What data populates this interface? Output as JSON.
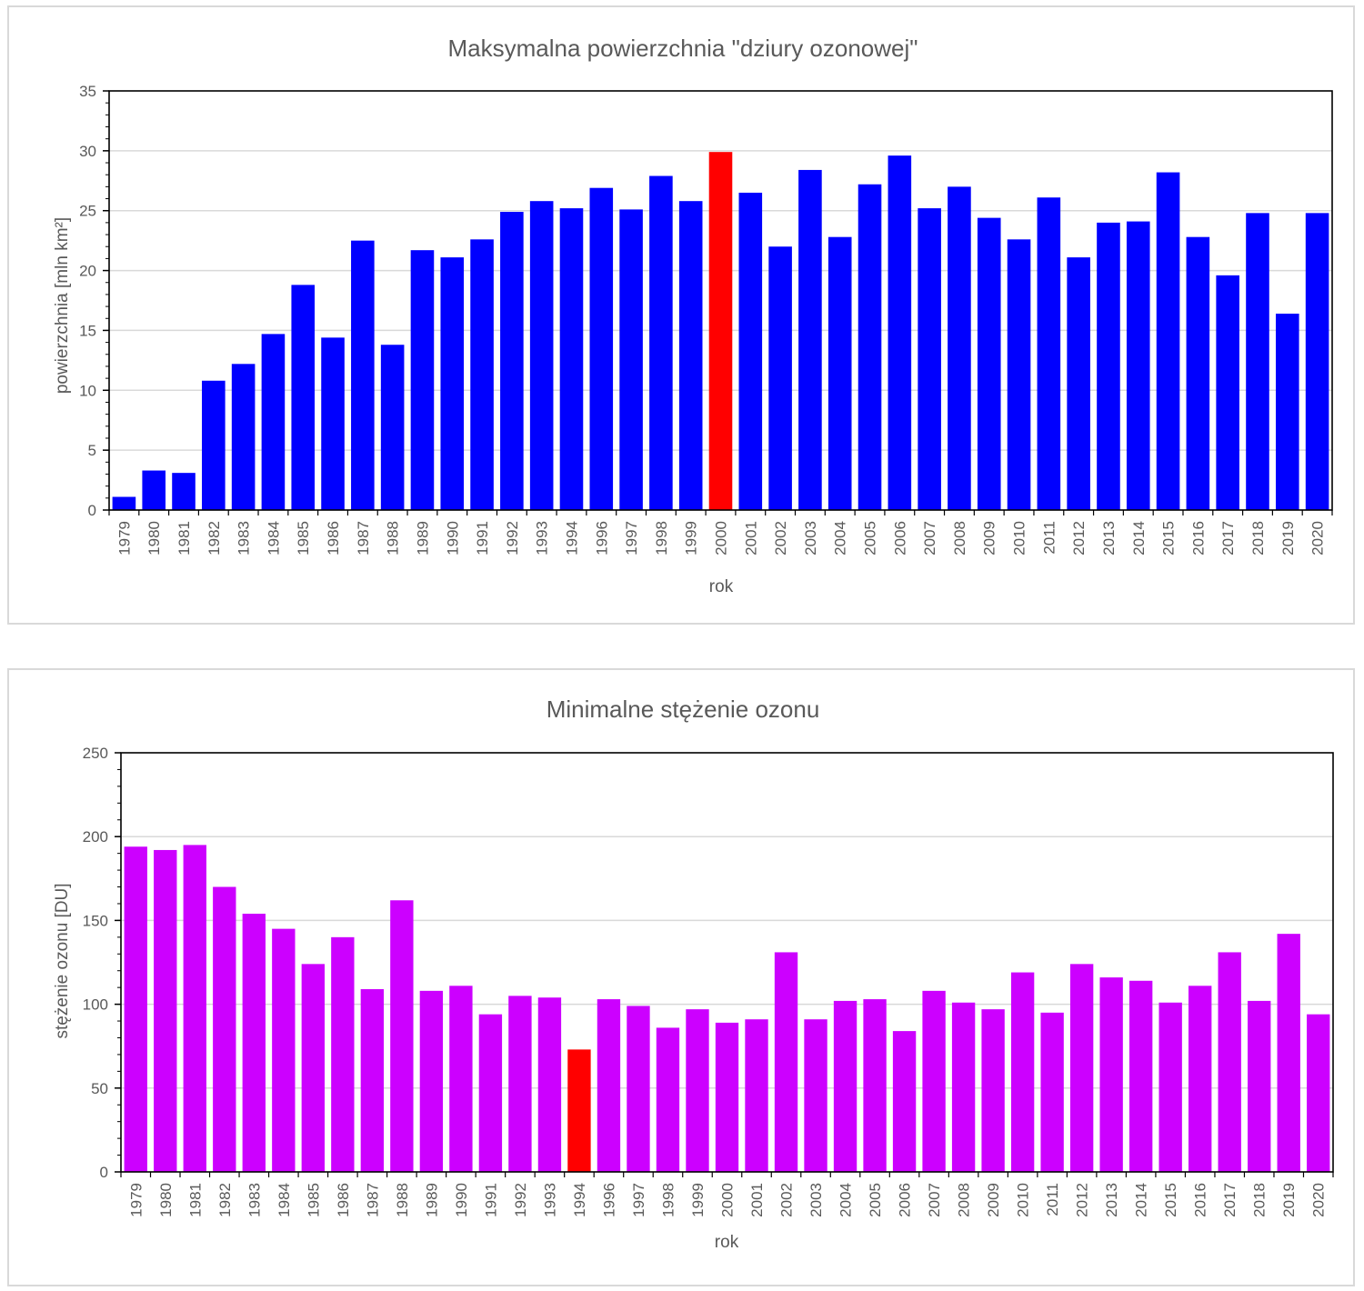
{
  "charts": [
    {
      "title": "Maksymalna powierzchnia \"dziury ozonowej\"",
      "xlabel": "rok",
      "ylabel": "powierzchnia [mln km²]",
      "bar_color": "#0000FF",
      "highlight_color": "#FF0000",
      "highlight_category": "2000",
      "yticks": [
        "0",
        "5",
        "10",
        "15",
        "20",
        "25",
        "30",
        "35"
      ]
    },
    {
      "title": "Minimalne stężenie ozonu",
      "xlabel": "rok",
      "ylabel": "stężenie ozonu [DU]",
      "bar_color": "#CC00FF",
      "highlight_color": "#FF0000",
      "highlight_category": "1994",
      "yticks": [
        "0",
        "50",
        "100",
        "150",
        "200",
        "250"
      ]
    }
  ],
  "chart_data": [
    {
      "type": "bar",
      "title": "Maksymalna powierzchnia \"dziury ozonowej\"",
      "xlabel": "rok",
      "ylabel": "powierzchnia [mln km²]",
      "ylim": [
        0,
        35
      ],
      "grid": true,
      "categories": [
        "1979",
        "1980",
        "1981",
        "1982",
        "1983",
        "1984",
        "1985",
        "1986",
        "1987",
        "1988",
        "1989",
        "1990",
        "1991",
        "1992",
        "1993",
        "1994",
        "1996",
        "1997",
        "1998",
        "1999",
        "2000",
        "2001",
        "2002",
        "2003",
        "2004",
        "2005",
        "2006",
        "2007",
        "2008",
        "2009",
        "2010",
        "2011",
        "2012",
        "2013",
        "2014",
        "2015",
        "2016",
        "2017",
        "2018",
        "2019",
        "2020"
      ],
      "values": [
        1.1,
        3.3,
        3.1,
        10.8,
        12.2,
        14.7,
        18.8,
        14.4,
        22.5,
        13.8,
        21.7,
        21.1,
        22.6,
        24.9,
        25.8,
        25.2,
        26.9,
        25.1,
        27.9,
        25.8,
        29.9,
        26.5,
        22.0,
        28.4,
        22.8,
        27.2,
        29.6,
        25.2,
        27.0,
        24.4,
        22.6,
        26.1,
        21.1,
        24.0,
        24.1,
        28.2,
        22.8,
        19.6,
        24.8,
        16.4,
        24.8
      ]
    },
    {
      "type": "bar",
      "title": "Minimalne stężenie ozonu",
      "xlabel": "rok",
      "ylabel": "stężenie ozonu [DU]",
      "ylim": [
        0,
        250
      ],
      "grid": true,
      "categories": [
        "1979",
        "1980",
        "1981",
        "1982",
        "1983",
        "1984",
        "1985",
        "1986",
        "1987",
        "1988",
        "1989",
        "1990",
        "1991",
        "1992",
        "1993",
        "1994",
        "1996",
        "1997",
        "1998",
        "1999",
        "2000",
        "2001",
        "2002",
        "2003",
        "2004",
        "2005",
        "2006",
        "2007",
        "2008",
        "2009",
        "2010",
        "2011",
        "2012",
        "2013",
        "2014",
        "2015",
        "2016",
        "2017",
        "2018",
        "2019",
        "2020"
      ],
      "values": [
        194,
        192,
        195,
        170,
        154,
        145,
        124,
        140,
        109,
        162,
        108,
        111,
        94,
        105,
        104,
        73,
        103,
        99,
        86,
        97,
        89,
        91,
        131,
        91,
        102,
        103,
        84,
        108,
        101,
        97,
        119,
        95,
        124,
        116,
        114,
        101,
        111,
        131,
        102,
        142,
        94
      ]
    }
  ]
}
